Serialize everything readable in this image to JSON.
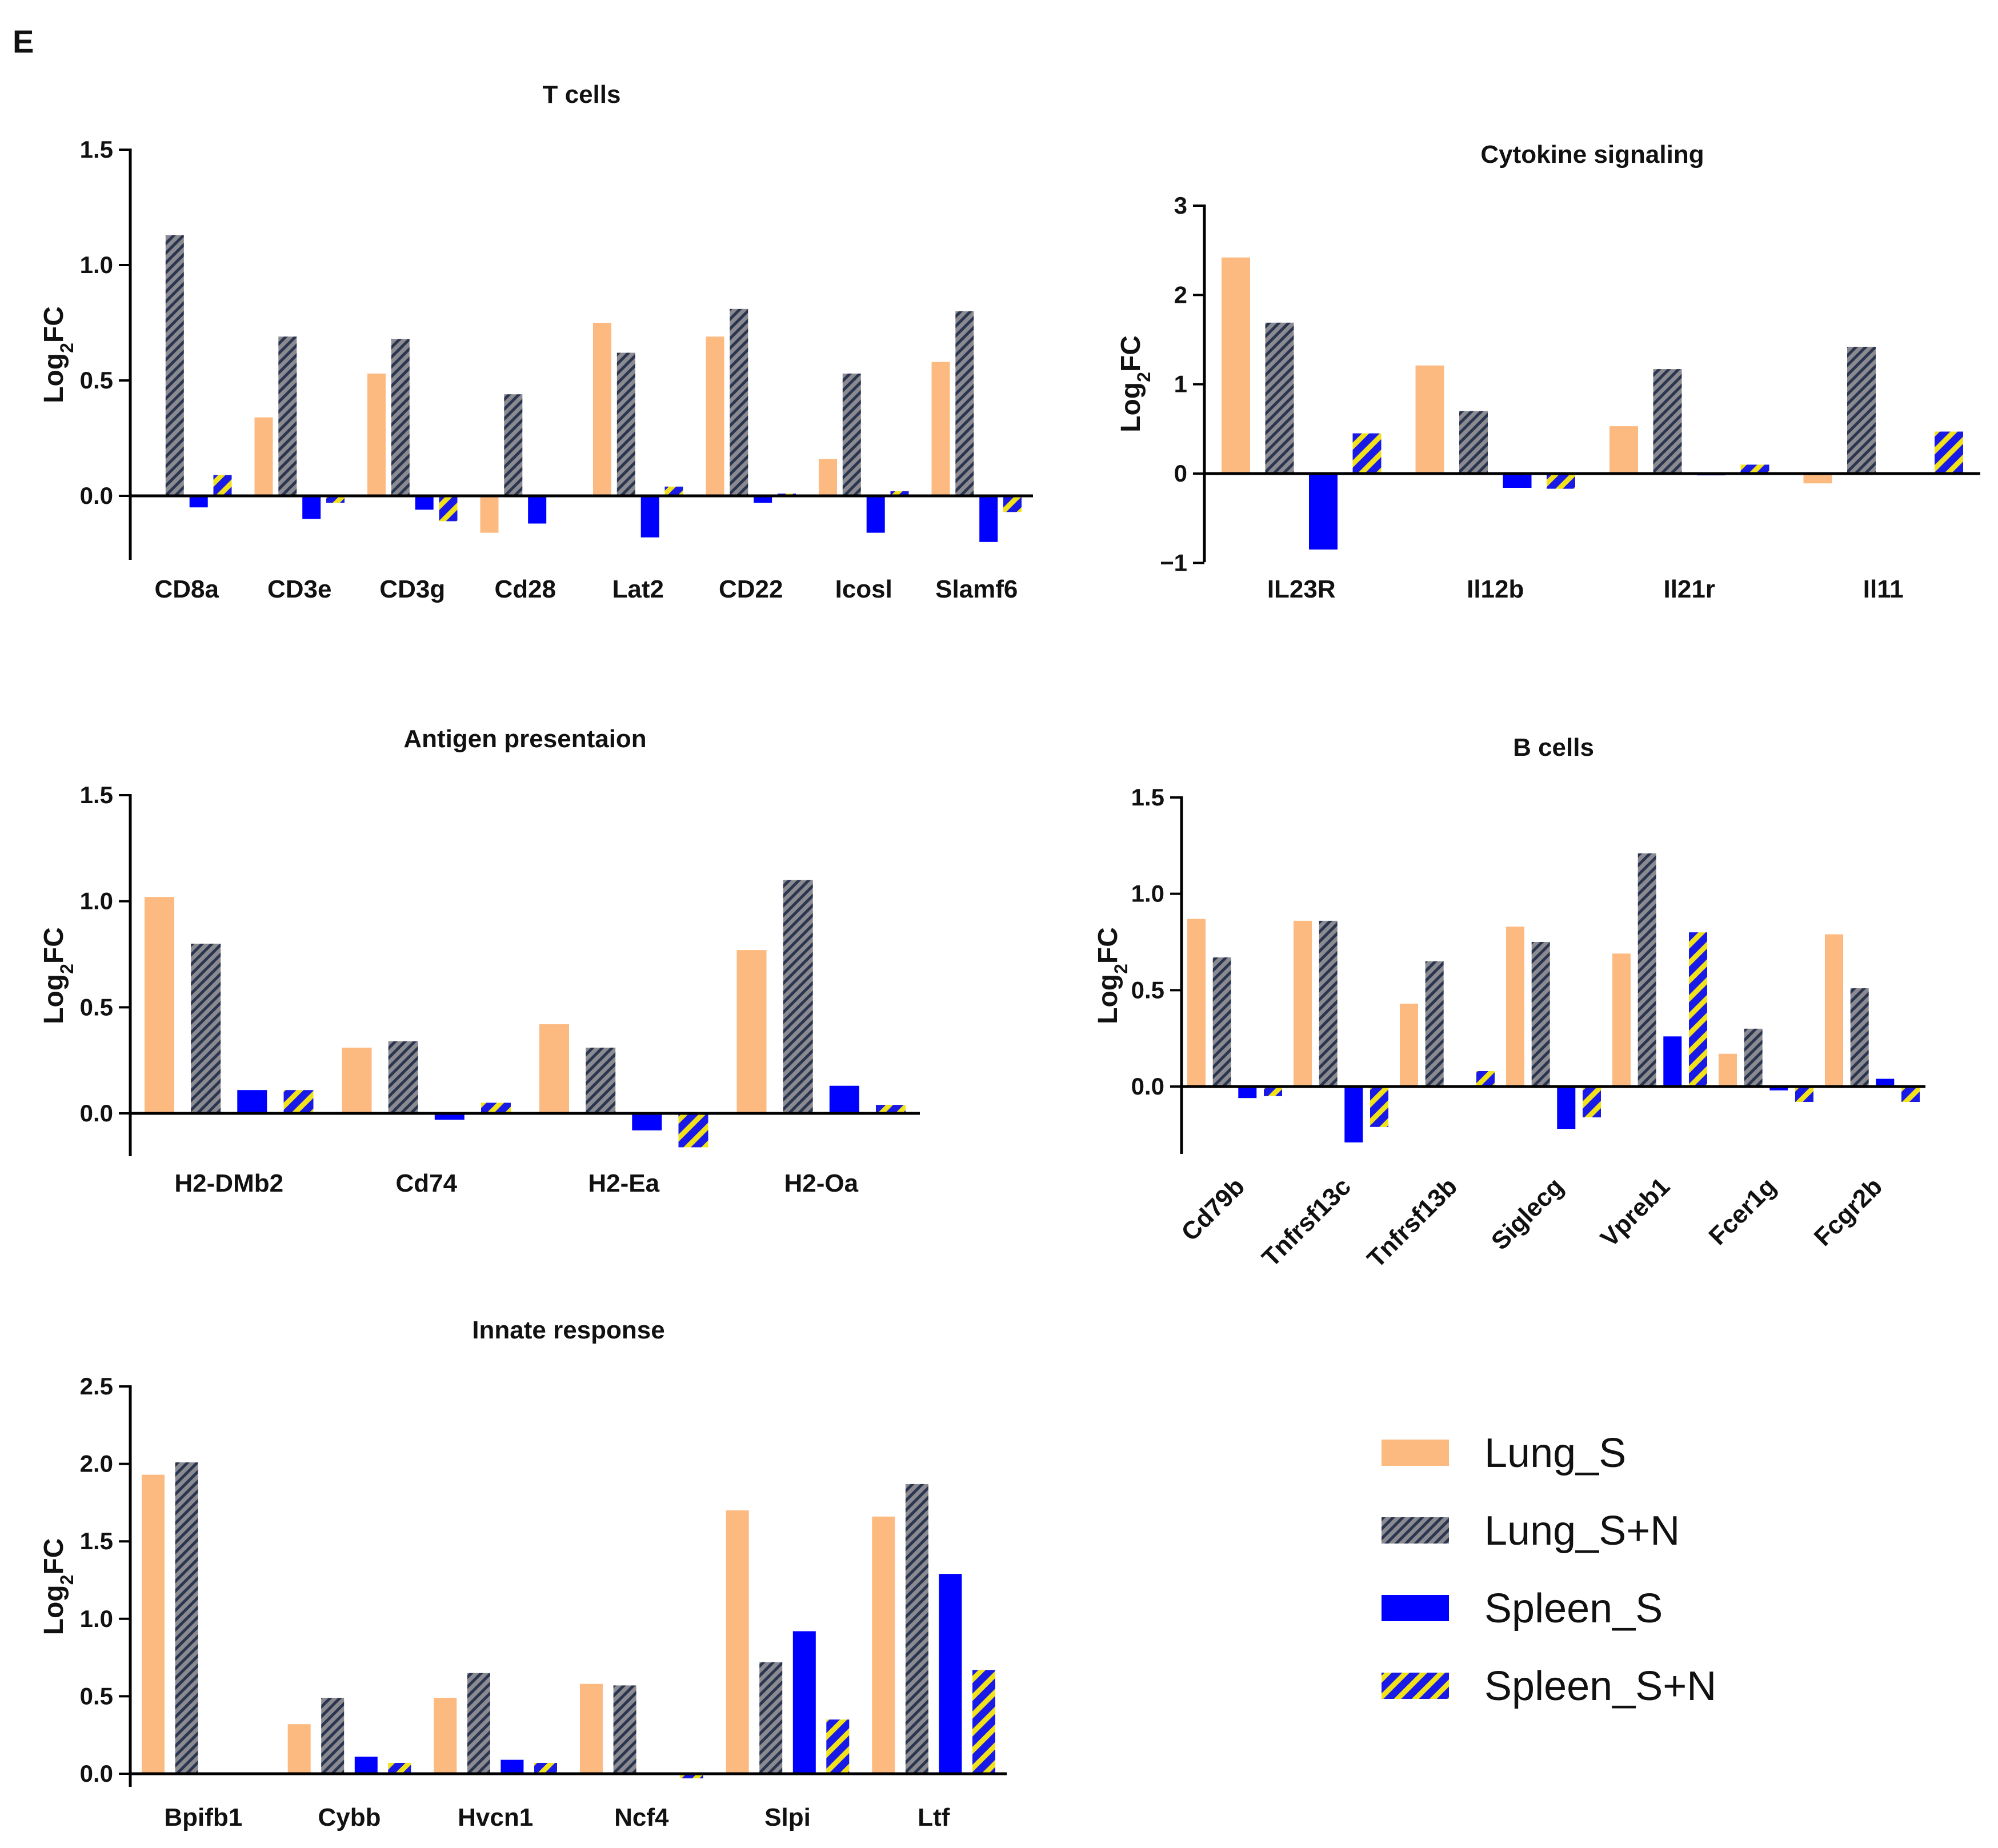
{
  "panel_letter": "E",
  "colors": {
    "Lung_S": "#FDBA80",
    "Lung_S+N_bg": "#8A8A90",
    "Lung_S+N_stripe": "#2A3550",
    "Spleen_S": "#0000FF",
    "Spleen_S+N_bg": "#1A1AE6",
    "Spleen_S+N_stripe": "#F2E21A"
  },
  "legend": {
    "items": [
      {
        "label": "Lung_S",
        "pattern": "solid-orange"
      },
      {
        "label": "Lung_S+N",
        "pattern": "hatch-gray"
      },
      {
        "label": "Spleen_S",
        "pattern": "solid-blue"
      },
      {
        "label": "Spleen_S+N",
        "pattern": "hatch-blue-yellow"
      }
    ]
  },
  "chart_data": [
    {
      "id": "tcells",
      "type": "bar",
      "title": "T cells",
      "ylabel": "Log2FC",
      "ylim": [
        -0.3,
        1.5
      ],
      "yticks": [
        0.0,
        0.5,
        1.0,
        1.5
      ],
      "ytick_labels": [
        "0.0",
        "0.5",
        "1.0",
        "1.5"
      ],
      "categories": [
        "CD8a",
        "CD3e",
        "CD3g",
        "Cd28",
        "Lat2",
        "CD22",
        "Icosl",
        "Slamf6"
      ],
      "rotate_labels": false,
      "series": [
        {
          "name": "Lung_S",
          "values": [
            0.0,
            0.34,
            0.53,
            -0.16,
            0.75,
            0.69,
            0.16,
            0.58
          ]
        },
        {
          "name": "Lung_S+N",
          "values": [
            1.13,
            0.69,
            0.68,
            0.44,
            0.62,
            0.81,
            0.53,
            0.8
          ]
        },
        {
          "name": "Spleen_S",
          "values": [
            -0.05,
            -0.1,
            -0.06,
            -0.12,
            -0.18,
            -0.03,
            -0.16,
            -0.2
          ]
        },
        {
          "name": "Spleen_S+N",
          "values": [
            0.09,
            -0.03,
            -0.11,
            0.0,
            0.04,
            0.01,
            0.02,
            -0.07
          ]
        }
      ]
    },
    {
      "id": "cytokine",
      "type": "bar",
      "title": "Cytokine signaling",
      "ylabel": "Log2FC",
      "ylim": [
        -1,
        3
      ],
      "yticks": [
        -1,
        0,
        1,
        2,
        3
      ],
      "ytick_labels": [
        "−1",
        "0",
        "1",
        "2",
        "3"
      ],
      "categories": [
        "IL23R",
        "Il12b",
        "Il21r",
        "Il11"
      ],
      "rotate_labels": false,
      "series": [
        {
          "name": "Lung_S",
          "values": [
            2.42,
            1.21,
            0.53,
            -0.11
          ]
        },
        {
          "name": "Lung_S+N",
          "values": [
            1.69,
            0.7,
            1.17,
            1.42
          ]
        },
        {
          "name": "Spleen_S",
          "values": [
            -0.85,
            -0.16,
            -0.02,
            0.0
          ]
        },
        {
          "name": "Spleen_S+N",
          "values": [
            0.45,
            -0.17,
            0.1,
            0.47
          ]
        }
      ]
    },
    {
      "id": "antigen",
      "type": "bar",
      "title": "Antigen presentaion",
      "ylabel": "Log2FC",
      "ylim": [
        -0.18,
        1.5
      ],
      "yticks": [
        0.0,
        0.5,
        1.0,
        1.5
      ],
      "ytick_labels": [
        "0.0",
        "0.5",
        "1.0",
        "1.5"
      ],
      "categories": [
        "H2-DMb2",
        "Cd74",
        "H2-Ea",
        "H2-Oa"
      ],
      "rotate_labels": false,
      "series": [
        {
          "name": "Lung_S",
          "values": [
            1.02,
            0.31,
            0.42,
            0.77
          ]
        },
        {
          "name": "Lung_S+N",
          "values": [
            0.8,
            0.34,
            0.31,
            1.1
          ]
        },
        {
          "name": "Spleen_S",
          "values": [
            0.11,
            -0.03,
            -0.08,
            0.13
          ]
        },
        {
          "name": "Spleen_S+N",
          "values": [
            0.11,
            0.05,
            -0.16,
            0.04
          ]
        }
      ]
    },
    {
      "id": "bcells",
      "type": "bar",
      "title": "B cells",
      "ylabel": "Log2FC",
      "ylim": [
        -0.35,
        1.5
      ],
      "yticks": [
        0.0,
        0.5,
        1.0,
        1.5
      ],
      "ytick_labels": [
        "0.0",
        "0.5",
        "1.0",
        "1.5"
      ],
      "categories": [
        "Cd79b",
        "Tnfrsf13c",
        "Tnfrsf13b",
        "Siglecg",
        "Vpreb1",
        "Fcer1g",
        "Fcgr2b"
      ],
      "rotate_labels": true,
      "series": [
        {
          "name": "Lung_S",
          "values": [
            0.87,
            0.86,
            0.43,
            0.83,
            0.69,
            0.17,
            0.79
          ]
        },
        {
          "name": "Lung_S+N",
          "values": [
            0.67,
            0.86,
            0.65,
            0.75,
            1.21,
            0.3,
            0.51
          ]
        },
        {
          "name": "Spleen_S",
          "values": [
            -0.06,
            -0.29,
            0.0,
            -0.22,
            0.26,
            -0.02,
            0.04
          ]
        },
        {
          "name": "Spleen_S+N",
          "values": [
            -0.05,
            -0.21,
            0.08,
            -0.16,
            0.8,
            -0.08,
            -0.08
          ]
        }
      ]
    },
    {
      "id": "innate",
      "type": "bar",
      "title": "Innate response",
      "ylabel": "Log2FC",
      "ylim": [
        -0.1,
        2.5
      ],
      "yticks": [
        0.0,
        0.5,
        1.0,
        1.5,
        2.0,
        2.5
      ],
      "ytick_labels": [
        "0.0",
        "0.5",
        "1.0",
        "1.5",
        "2.0",
        "2.5"
      ],
      "categories": [
        "Bpifb1",
        "Cybb",
        "Hvcn1",
        "Ncf4",
        "Slpi",
        "Ltf"
      ],
      "rotate_labels": false,
      "series": [
        {
          "name": "Lung_S",
          "values": [
            1.93,
            0.32,
            0.49,
            0.58,
            1.7,
            1.66
          ]
        },
        {
          "name": "Lung_S+N",
          "values": [
            2.01,
            0.49,
            0.65,
            0.57,
            0.72,
            1.87
          ]
        },
        {
          "name": "Spleen_S",
          "values": [
            0.0,
            0.11,
            0.09,
            0.0,
            0.92,
            1.29
          ]
        },
        {
          "name": "Spleen_S+N",
          "values": [
            0.0,
            0.07,
            0.07,
            -0.03,
            0.35,
            0.67
          ]
        }
      ]
    }
  ]
}
